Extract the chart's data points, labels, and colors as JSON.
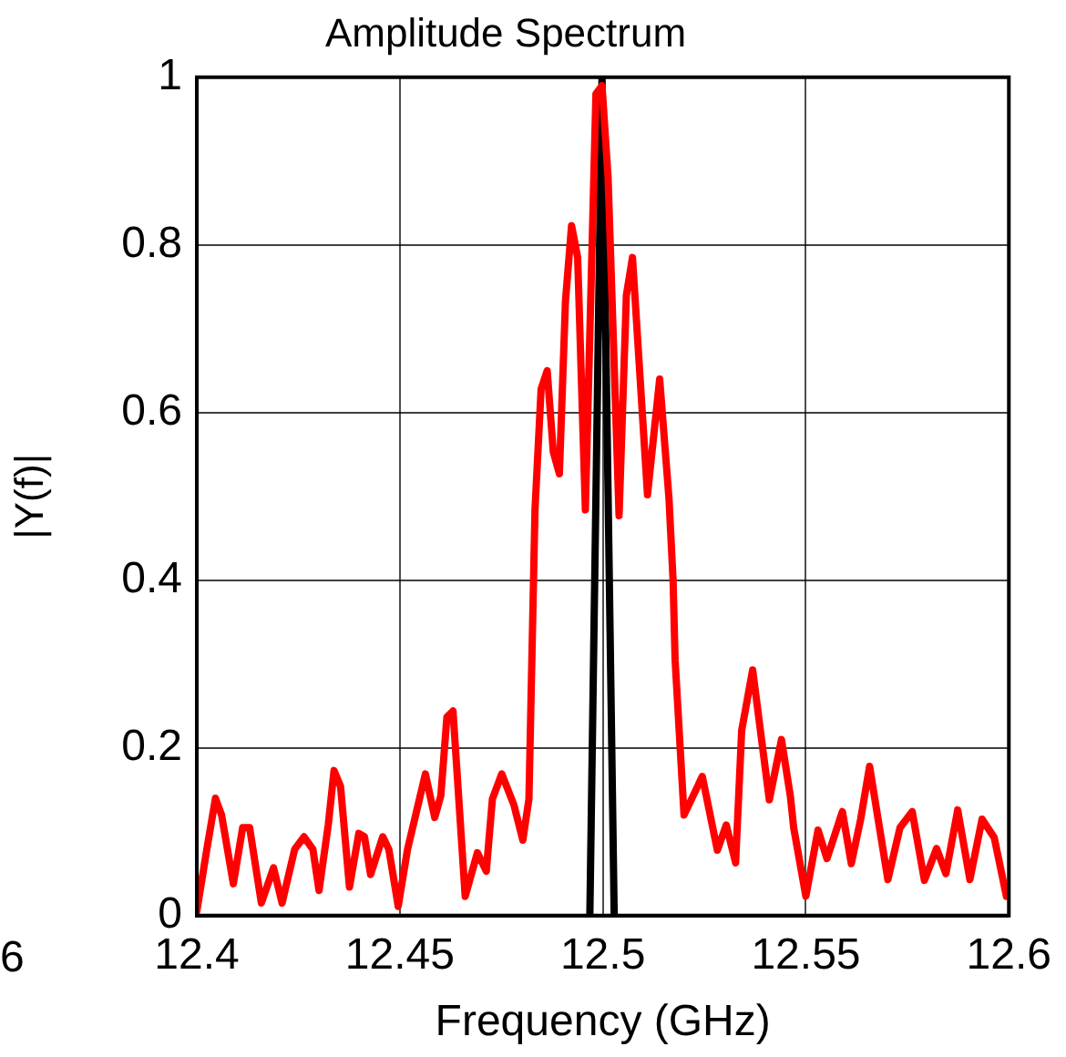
{
  "chart_data": {
    "type": "line",
    "title": "Amplitude Spectrum",
    "xlabel": "Frequency (GHz)",
    "ylabel": "|Y(f)|",
    "xlim": [
      12.4,
      12.6
    ],
    "xticks": [
      12.4,
      12.45,
      12.5,
      12.55,
      12.6
    ],
    "ylim": [
      0,
      1
    ],
    "yticks": [
      0,
      0.2,
      0.4,
      0.6,
      0.8,
      1
    ],
    "grid": true,
    "legend": false,
    "marker": "none",
    "line_style": "solid",
    "annotations": [
      "6"
    ],
    "series": [
      {
        "color": "#ff0000",
        "x": [
          12.4,
          12.4024,
          12.4046,
          12.4061,
          12.409,
          12.4113,
          12.413,
          12.4159,
          12.4189,
          12.421,
          12.4241,
          12.4264,
          12.4286,
          12.4301,
          12.4324,
          12.4338,
          12.4354,
          12.4376,
          12.4399,
          12.4413,
          12.4428,
          12.4458,
          12.4473,
          12.4496,
          12.4519,
          12.4541,
          12.4563,
          12.4586,
          12.4601,
          12.4616,
          12.4631,
          12.4661,
          12.4691,
          12.4713,
          12.4728,
          12.4751,
          12.4781,
          12.4803,
          12.4818,
          12.4833,
          12.4848,
          12.4863,
          12.4878,
          12.4893,
          12.4908,
          12.4923,
          12.4938,
          12.4957,
          12.4983,
          12.4998,
          12.5013,
          12.504,
          12.5058,
          12.5073,
          12.511,
          12.514,
          12.5163,
          12.5173,
          12.5178,
          12.52,
          12.5245,
          12.5282,
          12.5304,
          12.5327,
          12.5342,
          12.5369,
          12.541,
          12.544,
          12.5462,
          12.547,
          12.55,
          12.553,
          12.5552,
          12.559,
          12.5612,
          12.5635,
          12.5657,
          12.5702,
          12.5732,
          12.5762,
          12.5792,
          12.5822,
          12.5845,
          12.5874,
          12.5904,
          12.5934,
          12.5964,
          12.5994
        ],
        "values": [
          0.005,
          0.077,
          0.14,
          0.12,
          0.038,
          0.105,
          0.105,
          0.015,
          0.057,
          0.015,
          0.079,
          0.094,
          0.079,
          0.03,
          0.109,
          0.173,
          0.154,
          0.034,
          0.098,
          0.094,
          0.049,
          0.094,
          0.079,
          0.011,
          0.079,
          0.124,
          0.169,
          0.117,
          0.143,
          0.237,
          0.244,
          0.023,
          0.075,
          0.053,
          0.139,
          0.169,
          0.132,
          0.09,
          0.139,
          0.485,
          0.628,
          0.65,
          0.553,
          0.527,
          0.733,
          0.823,
          0.785,
          0.484,
          0.98,
          0.99,
          0.88,
          0.477,
          0.74,
          0.785,
          0.502,
          0.64,
          0.497,
          0.4,
          0.305,
          0.12,
          0.166,
          0.078,
          0.108,
          0.063,
          0.221,
          0.293,
          0.138,
          0.21,
          0.142,
          0.105,
          0.023,
          0.102,
          0.068,
          0.124,
          0.062,
          0.115,
          0.178,
          0.043,
          0.105,
          0.124,
          0.042,
          0.08,
          0.05,
          0.126,
          0.043,
          0.115,
          0.093,
          0.023
        ]
      },
      {
        "color": "#000000",
        "x": [
          12.4968,
          12.4998,
          12.5028
        ],
        "values": [
          0,
          1,
          0
        ]
      }
    ]
  }
}
